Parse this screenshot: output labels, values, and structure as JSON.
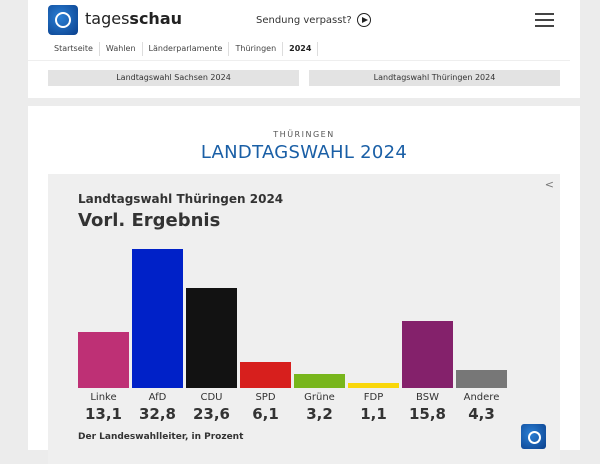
{
  "header": {
    "brand_light": "tages",
    "brand_bold": "schau",
    "missed": "Sendung verpasst?",
    "breadcrumb": [
      "Startseite",
      "Wahlen",
      "Länderparlamente",
      "Thüringen",
      "2024"
    ],
    "buttons": [
      "Landtagswahl Sachsen 2024",
      "Landtagswahl Thüringen 2024"
    ]
  },
  "main": {
    "kicker": "THÜRINGEN",
    "title": "LANDTAGSWAHL 2024"
  },
  "chart_data": {
    "type": "bar",
    "title": "Landtagswahl Thüringen 2024",
    "subtitle": "Vorl. Ergebnis",
    "source": "Der Landeswahlleiter, in Prozent",
    "categories": [
      "Linke",
      "AfD",
      "CDU",
      "SPD",
      "Grüne",
      "FDP",
      "BSW",
      "Andere"
    ],
    "values": [
      13.1,
      32.8,
      23.6,
      6.1,
      3.2,
      1.1,
      15.8,
      4.3
    ],
    "labels": [
      "13,1",
      "32,8",
      "23,6",
      "6,1",
      "3,2",
      "1,1",
      "15,8",
      "4,3"
    ],
    "colors": [
      "#be3075",
      "#0021c8",
      "#121212",
      "#d71f1d",
      "#78b61c",
      "#f9d70a",
      "#84216b",
      "#777777"
    ]
  }
}
